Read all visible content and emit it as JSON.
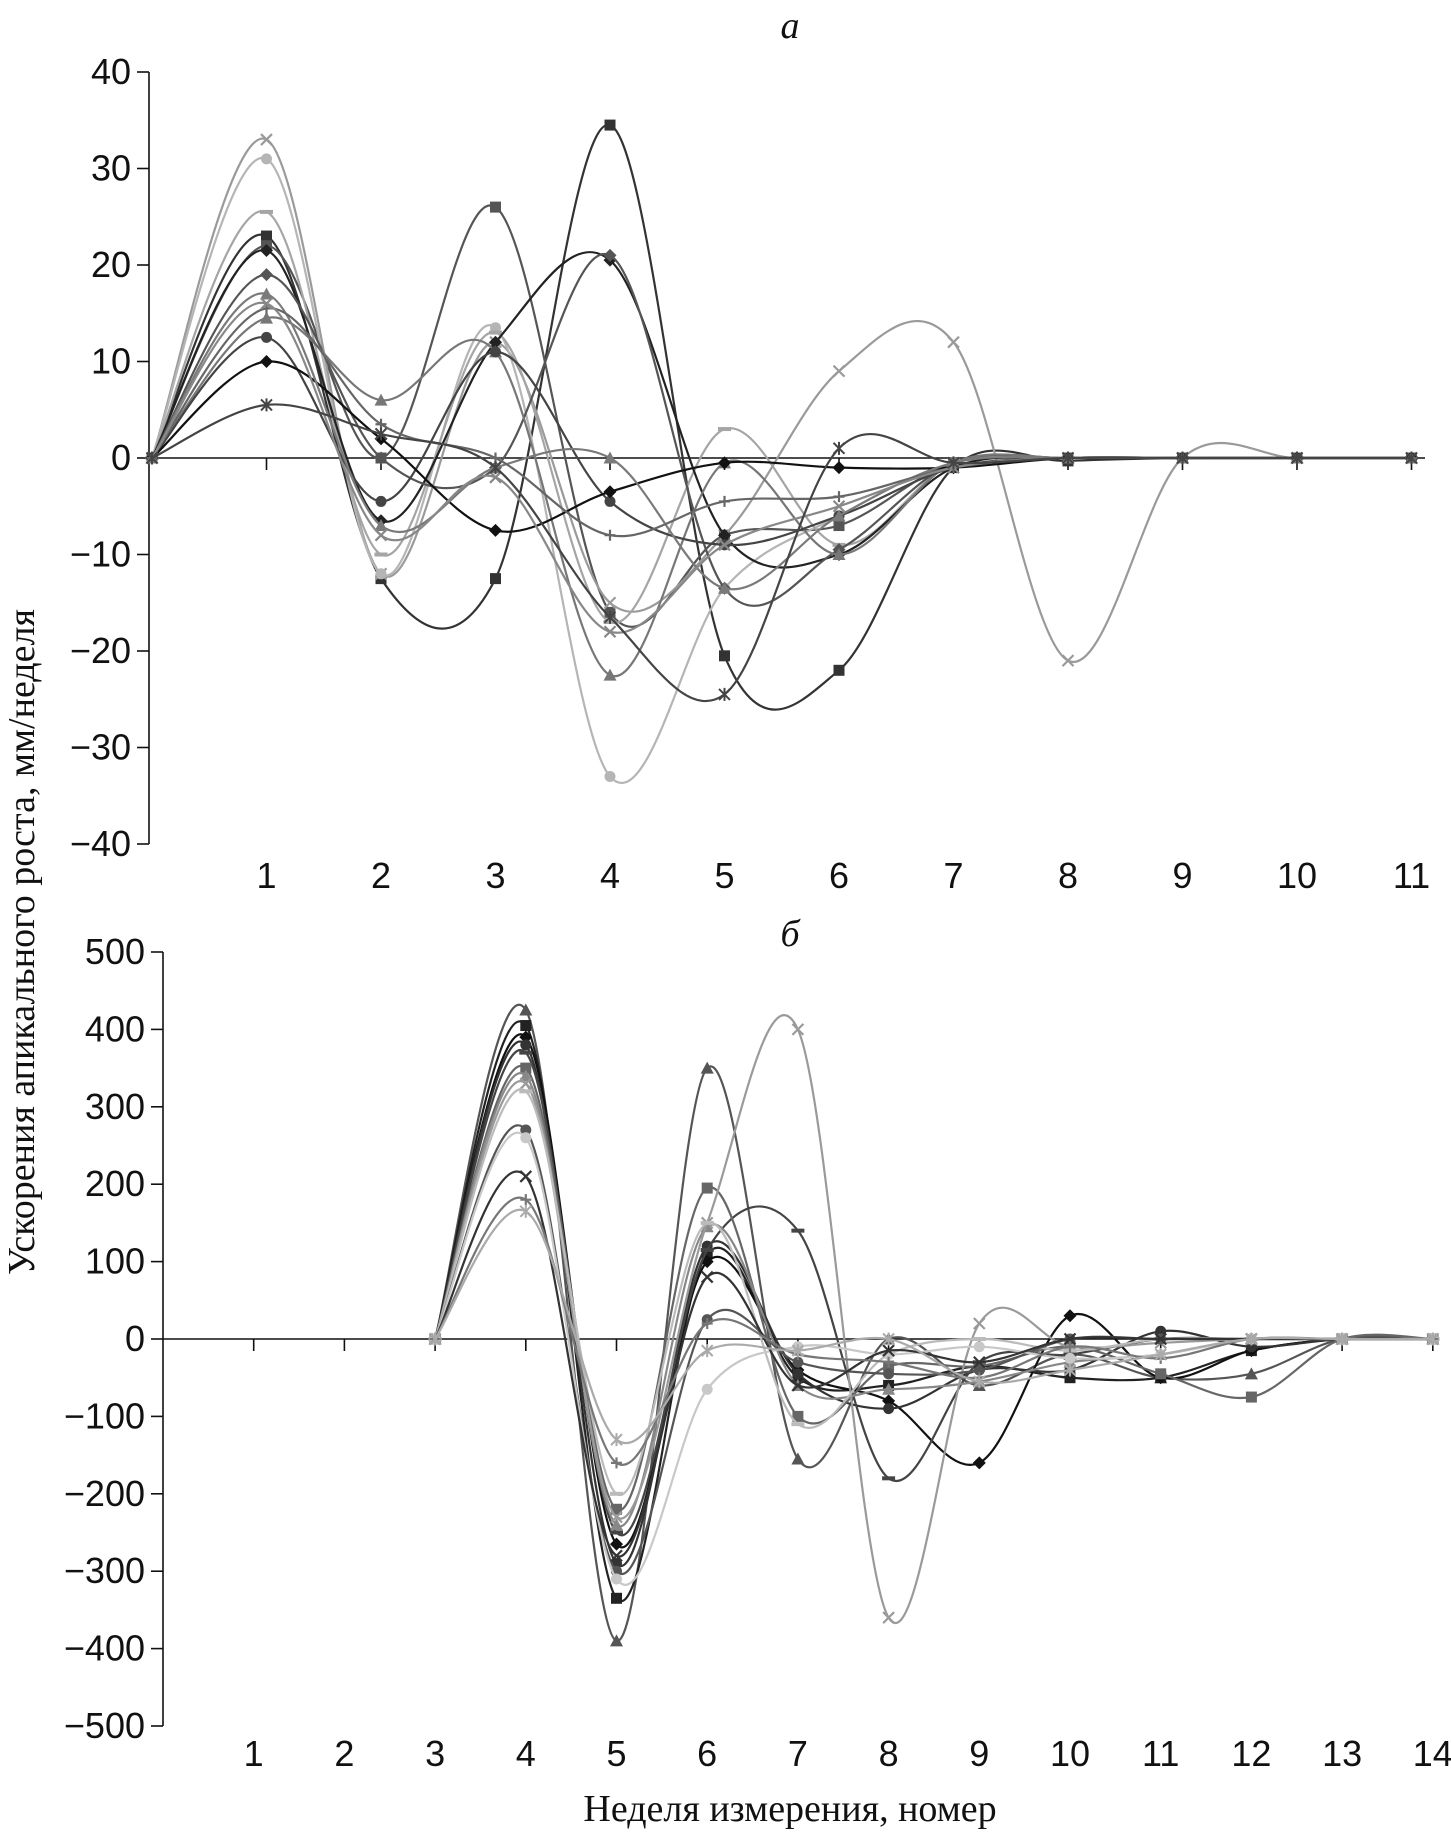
{
  "figure": {
    "ylabel": "Ускорения апикального роста, мм/неделя",
    "xlabel": "Неделя измерения, номер"
  },
  "chart_data": [
    {
      "type": "line",
      "panel_label": "a",
      "ylim": [
        -40,
        40
      ],
      "yticks": [
        40,
        30,
        20,
        10,
        0,
        -10,
        -20,
        -30,
        -40
      ],
      "ytick_labels": [
        "40",
        "30",
        "20",
        "10",
        "0",
        "−10",
        "−20",
        "−30",
        "−40"
      ],
      "x": [
        0,
        1,
        2,
        3,
        4,
        5,
        6,
        7,
        8,
        9,
        10,
        11
      ],
      "xticks": [
        1,
        2,
        3,
        4,
        5,
        6,
        7,
        8,
        9,
        10,
        11
      ],
      "xtick_labels": [
        "1",
        "2",
        "3",
        "4",
        "5",
        "6",
        "7",
        "8",
        "9",
        "10",
        "11"
      ],
      "grid": false,
      "series": [
        {
          "color": "#333333",
          "marker": "square",
          "values": [
            0,
            23,
            -12.5,
            -12.5,
            34.5,
            -20.5,
            -22,
            -1,
            -0.3,
            0,
            0,
            0
          ]
        },
        {
          "color": "#555555",
          "marker": "square",
          "values": [
            0,
            22,
            0,
            26,
            -16,
            -8,
            -7,
            -0.5,
            0,
            0,
            0,
            0
          ]
        },
        {
          "color": "#9a9a9a",
          "marker": "x",
          "values": [
            0,
            33,
            -12,
            12,
            -15,
            -8,
            9,
            12,
            -21,
            0,
            0,
            0
          ]
        },
        {
          "color": "#b5b5b5",
          "marker": "circle",
          "values": [
            0,
            31,
            -12,
            13.5,
            -33,
            -13.5,
            -6,
            -0.5,
            0,
            0,
            0,
            0
          ]
        },
        {
          "color": "#a5a5a5",
          "marker": "dash",
          "values": [
            0,
            25.5,
            -10,
            13,
            -17,
            3,
            -9,
            -0.5,
            0,
            0,
            0,
            0
          ]
        },
        {
          "color": "#222222",
          "marker": "diamond",
          "values": [
            0,
            21.5,
            -6.5,
            12,
            20.5,
            -8,
            -10,
            -1,
            0,
            0,
            0,
            0
          ]
        },
        {
          "color": "#555555",
          "marker": "diamond",
          "values": [
            0,
            19,
            0,
            -1,
            21,
            -13.5,
            -9.5,
            -0.5,
            0,
            0,
            0,
            0
          ]
        },
        {
          "color": "#777777",
          "marker": "triangle",
          "values": [
            0,
            14.5,
            6,
            11,
            -22.5,
            -0.5,
            -10,
            -0.5,
            0,
            0,
            0,
            0
          ]
        },
        {
          "color": "#444444",
          "marker": "circle",
          "values": [
            0,
            12.5,
            -4.5,
            11,
            -4.5,
            -9,
            -6,
            -1,
            0,
            0,
            0,
            0
          ]
        },
        {
          "color": "#111111",
          "marker": "diamond",
          "values": [
            0,
            10,
            2,
            -7.5,
            -3.5,
            -0.5,
            -1,
            -1,
            0,
            0,
            0,
            0
          ]
        },
        {
          "color": "#7a7a7a",
          "marker": "triangle",
          "values": [
            0,
            17,
            -7,
            -1,
            0,
            -13.5,
            -6,
            -0.5,
            0,
            0,
            0,
            0
          ]
        },
        {
          "color": "#666666",
          "marker": "plus",
          "values": [
            0,
            15.5,
            3.5,
            0,
            -8,
            -4.5,
            -4,
            -1,
            0,
            0,
            0,
            0
          ]
        },
        {
          "color": "#888888",
          "marker": "x",
          "values": [
            0,
            16,
            -8,
            -2,
            -18,
            -9,
            -5,
            -1,
            0,
            0,
            0,
            0
          ]
        },
        {
          "color": "#444444",
          "marker": "star",
          "values": [
            0,
            5.5,
            2.5,
            -1,
            -16.5,
            -24.5,
            1,
            -0.5,
            0,
            0,
            0,
            0
          ]
        }
      ]
    },
    {
      "type": "line",
      "panel_label": "б",
      "ylim": [
        -500,
        500
      ],
      "yticks": [
        500,
        400,
        300,
        200,
        100,
        0,
        -100,
        -200,
        -300,
        -400,
        -500
      ],
      "ytick_labels": [
        "500",
        "400",
        "300",
        "200",
        "100",
        "0",
        "−100",
        "−200",
        "−300",
        "−400",
        "−500"
      ],
      "x": [
        3,
        4,
        5,
        6,
        7,
        8,
        9,
        10,
        11,
        12,
        13,
        14
      ],
      "xticks": [
        1,
        2,
        3,
        4,
        5,
        6,
        7,
        8,
        9,
        10,
        11,
        12,
        13,
        14
      ],
      "xtick_labels": [
        "1",
        "2",
        "3",
        "4",
        "5",
        "6",
        "7",
        "8",
        "9",
        "10",
        "11",
        "12",
        "13",
        "14"
      ],
      "grid": false,
      "series": [
        {
          "color": "#555555",
          "marker": "triangle",
          "values": [
            0,
            425,
            -390,
            350,
            -155,
            0,
            -60,
            -20,
            -50,
            -45,
            0,
            0
          ]
        },
        {
          "color": "#222222",
          "marker": "square",
          "values": [
            0,
            405,
            -335,
            110,
            -50,
            -60,
            -35,
            -50,
            -50,
            -15,
            0,
            0
          ]
        },
        {
          "color": "#111111",
          "marker": "diamond",
          "values": [
            0,
            390,
            -265,
            100,
            -40,
            -80,
            -160,
            30,
            -50,
            -15,
            0,
            0
          ]
        },
        {
          "color": "#333333",
          "marker": "circle",
          "values": [
            0,
            380,
            -290,
            120,
            -45,
            -90,
            -40,
            -40,
            10,
            -10,
            0,
            0
          ]
        },
        {
          "color": "#444444",
          "marker": "dash",
          "values": [
            0,
            370,
            -250,
            115,
            140,
            -180,
            -30,
            -20,
            0,
            0,
            0,
            0
          ]
        },
        {
          "color": "#666666",
          "marker": "square",
          "values": [
            0,
            350,
            -220,
            195,
            -100,
            -35,
            -35,
            -10,
            -45,
            -75,
            0,
            0
          ]
        },
        {
          "color": "#888888",
          "marker": "triangle",
          "values": [
            0,
            340,
            -240,
            145,
            -60,
            -65,
            -55,
            -30,
            -20,
            0,
            0,
            0
          ]
        },
        {
          "color": "#9a9a9a",
          "marker": "x",
          "values": [
            0,
            330,
            -230,
            150,
            400,
            -360,
            20,
            -10,
            -5,
            0,
            0,
            0
          ]
        },
        {
          "color": "#bbbbbb",
          "marker": "dash",
          "values": [
            0,
            320,
            -200,
            150,
            -110,
            -20,
            0,
            -15,
            0,
            0,
            0,
            0
          ]
        },
        {
          "color": "#555555",
          "marker": "circle",
          "values": [
            0,
            270,
            -300,
            25,
            -30,
            -45,
            -40,
            0,
            0,
            0,
            0,
            0
          ]
        },
        {
          "color": "#c8c8c8",
          "marker": "circle",
          "values": [
            0,
            260,
            -310,
            -65,
            -10,
            -20,
            -10,
            -25,
            -20,
            0,
            0,
            0
          ]
        },
        {
          "color": "#333333",
          "marker": "x",
          "values": [
            0,
            210,
            -280,
            80,
            -60,
            -15,
            -30,
            0,
            0,
            0,
            0,
            0
          ]
        },
        {
          "color": "#777777",
          "marker": "plus",
          "values": [
            0,
            180,
            -160,
            20,
            -20,
            -30,
            -50,
            -10,
            -25,
            0,
            0,
            0
          ]
        },
        {
          "color": "#aaaaaa",
          "marker": "star",
          "values": [
            0,
            165,
            -130,
            -15,
            -15,
            0,
            -55,
            -40,
            -20,
            0,
            0,
            0
          ]
        }
      ]
    }
  ]
}
